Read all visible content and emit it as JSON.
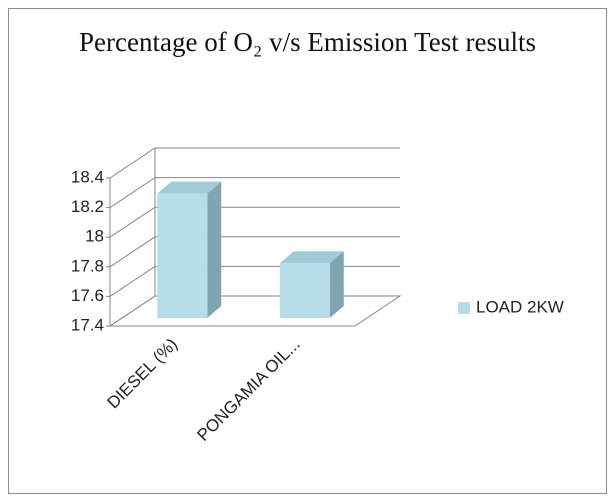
{
  "chart_data": {
    "type": "bar3d",
    "title": "Percentage of O₂ v/s Emission Test results",
    "categories": [
      "DIESEL (%)",
      "PONGAMIA OIL..."
    ],
    "series": [
      {
        "name": "LOAD 2KW",
        "color": "#b7dde8",
        "values": [
          18.24,
          17.77
        ]
      }
    ],
    "ylim": [
      17.4,
      18.4
    ],
    "yticks": [
      17.4,
      17.6,
      17.8,
      18,
      18.2,
      18.4
    ],
    "grid": true,
    "legend": "right"
  }
}
